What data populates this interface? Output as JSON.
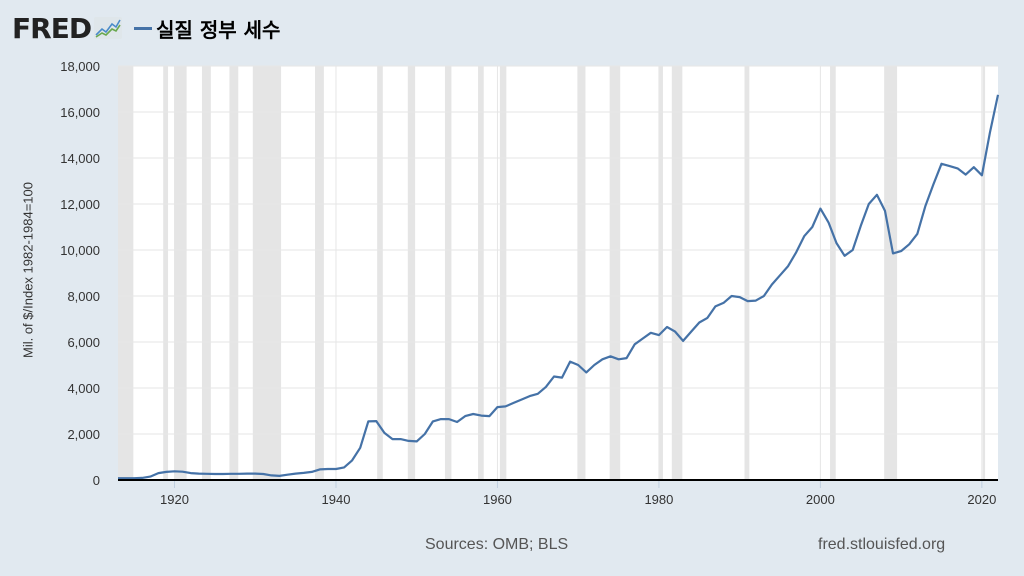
{
  "header": {
    "logo": "FRED",
    "series_label": "실질 정부 세수"
  },
  "colors": {
    "line": "#4572a7",
    "recession": "#e5e5e5",
    "plot_bg": "#ffffff",
    "page_bg": "#e1e9f0",
    "grid": "#e6e6e6"
  },
  "footer": {
    "sources": "Sources: OMB; BLS",
    "url": "fred.stlouisfed.org"
  },
  "chart_data": {
    "type": "line",
    "title": "실질 정부 세수",
    "xlabel": "",
    "ylabel": "Mil. of $/Index 1982-1984=100",
    "ylim": [
      0,
      18000
    ],
    "xlim": [
      1913,
      2022
    ],
    "yticks": [
      0,
      2000,
      4000,
      6000,
      8000,
      10000,
      12000,
      14000,
      16000,
      18000
    ],
    "ytick_labels": [
      "0",
      "2,000",
      "4,000",
      "6,000",
      "8,000",
      "10,000",
      "12,000",
      "14,000",
      "16,000",
      "18,000"
    ],
    "xticks": [
      1920,
      1940,
      1960,
      1980,
      2000,
      2020
    ],
    "grid": true,
    "legend_position": "top-left",
    "recession_bands": [
      [
        1913,
        1914.9
      ],
      [
        1918.6,
        1919.2
      ],
      [
        1920,
        1921.5
      ],
      [
        1923.4,
        1924.5
      ],
      [
        1926.8,
        1927.9
      ],
      [
        1929.7,
        1933.2
      ],
      [
        1937.4,
        1938.5
      ],
      [
        1945.1,
        1945.8
      ],
      [
        1948.9,
        1949.8
      ],
      [
        1953.5,
        1954.3
      ],
      [
        1957.6,
        1958.3
      ],
      [
        1960.3,
        1961.1
      ],
      [
        1969.9,
        1970.9
      ],
      [
        1973.9,
        1975.2
      ],
      [
        1980,
        1980.5
      ],
      [
        1981.6,
        1982.9
      ],
      [
        1990.6,
        1991.2
      ],
      [
        2001.2,
        2001.9
      ],
      [
        2007.9,
        2009.5
      ],
      [
        2020.1,
        2020.4
      ]
    ],
    "series": [
      {
        "name": "실질 정부 세수",
        "x": [
          1913,
          1914,
          1915,
          1916,
          1917,
          1918,
          1919,
          1920,
          1921,
          1922,
          1923,
          1924,
          1925,
          1926,
          1927,
          1928,
          1929,
          1930,
          1931,
          1932,
          1933,
          1934,
          1935,
          1936,
          1937,
          1938,
          1939,
          1940,
          1941,
          1942,
          1943,
          1944,
          1945,
          1946,
          1947,
          1948,
          1949,
          1950,
          1951,
          1952,
          1953,
          1954,
          1955,
          1956,
          1957,
          1958,
          1959,
          1960,
          1961,
          1962,
          1963,
          1964,
          1965,
          1966,
          1967,
          1968,
          1969,
          1970,
          1971,
          1972,
          1973,
          1974,
          1975,
          1976,
          1977,
          1978,
          1979,
          1980,
          1981,
          1982,
          1983,
          1984,
          1985,
          1986,
          1987,
          1988,
          1989,
          1990,
          1991,
          1992,
          1993,
          1994,
          1995,
          1996,
          1997,
          1998,
          1999,
          2000,
          2001,
          2002,
          2003,
          2004,
          2005,
          2006,
          2007,
          2008,
          2009,
          2010,
          2011,
          2012,
          2013,
          2014,
          2015,
          2016,
          2017,
          2018,
          2019,
          2020,
          2021,
          2022
        ],
        "values": [
          80,
          80,
          80,
          90,
          150,
          300,
          350,
          380,
          360,
          300,
          280,
          270,
          260,
          260,
          270,
          270,
          280,
          280,
          260,
          200,
          180,
          230,
          280,
          310,
          350,
          460,
          480,
          480,
          550,
          850,
          1400,
          2550,
          2560,
          2050,
          1780,
          1780,
          1700,
          1680,
          2000,
          2550,
          2650,
          2650,
          2520,
          2780,
          2870,
          2800,
          2780,
          3170,
          3200,
          3350,
          3500,
          3650,
          3750,
          4050,
          4500,
          4450,
          5150,
          5000,
          4680,
          5000,
          5250,
          5380,
          5250,
          5300,
          5900,
          6150,
          6400,
          6300,
          6650,
          6450,
          6050,
          6450,
          6850,
          7050,
          7550,
          7700,
          8000,
          7950,
          7780,
          7800,
          8000,
          8500,
          8900,
          9300,
          9900,
          10600,
          11000,
          11800,
          11200,
          10300,
          9750,
          10000,
          11050,
          12000,
          12400,
          11700,
          9850,
          9950,
          10250,
          10700,
          11900,
          12850,
          13750,
          13650,
          13550,
          13280,
          13600,
          13250,
          15100,
          16750
        ]
      }
    ]
  }
}
